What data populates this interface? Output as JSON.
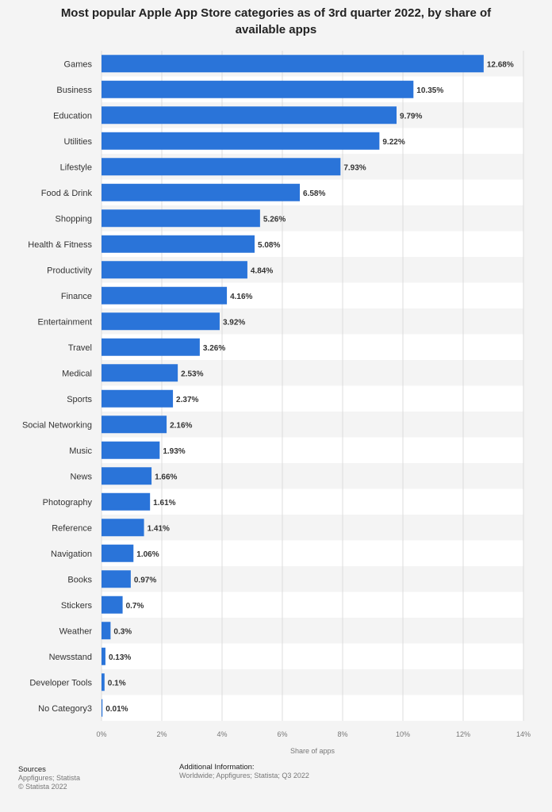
{
  "chart_data": {
    "type": "bar",
    "orientation": "horizontal",
    "title": "Most popular Apple App Store categories as of 3rd quarter 2022, by share of available apps",
    "xlabel": "Share of apps",
    "ylabel": "",
    "xlim": [
      0,
      14
    ],
    "x_ticks": [
      "0%",
      "2%",
      "4%",
      "6%",
      "8%",
      "10%",
      "12%",
      "14%"
    ],
    "grid": true,
    "bar_color": "#2a74d9",
    "categories": [
      "Games",
      "Business",
      "Education",
      "Utilities",
      "Lifestyle",
      "Food & Drink",
      "Shopping",
      "Health & Fitness",
      "Productivity",
      "Finance",
      "Entertainment",
      "Travel",
      "Medical",
      "Sports",
      "Social Networking",
      "Music",
      "News",
      "Photography",
      "Reference",
      "Navigation",
      "Books",
      "Stickers",
      "Weather",
      "Newsstand",
      "Developer Tools",
      "No Category3"
    ],
    "values": [
      12.68,
      10.35,
      9.79,
      9.22,
      7.93,
      6.58,
      5.26,
      5.08,
      4.84,
      4.16,
      3.92,
      3.26,
      2.53,
      2.37,
      2.16,
      1.93,
      1.66,
      1.61,
      1.41,
      1.06,
      0.97,
      0.7,
      0.3,
      0.13,
      0.1,
      0.01
    ],
    "value_labels": [
      "12.68%",
      "10.35%",
      "9.79%",
      "9.22%",
      "7.93%",
      "6.58%",
      "5.26%",
      "5.08%",
      "4.84%",
      "4.16%",
      "3.92%",
      "3.26%",
      "2.53%",
      "2.37%",
      "2.16%",
      "1.93%",
      "1.66%",
      "1.61%",
      "1.41%",
      "1.06%",
      "0.97%",
      "0.7%",
      "0.3%",
      "0.13%",
      "0.1%",
      "0.01%"
    ]
  },
  "footer": {
    "sources_heading": "Sources",
    "sources_line1": "Appfigures; Statista",
    "sources_line2": "© Statista 2022",
    "info_heading": "Additional Information:",
    "info_line1": "Worldwide; Appfigures; Statista; Q3 2022"
  }
}
